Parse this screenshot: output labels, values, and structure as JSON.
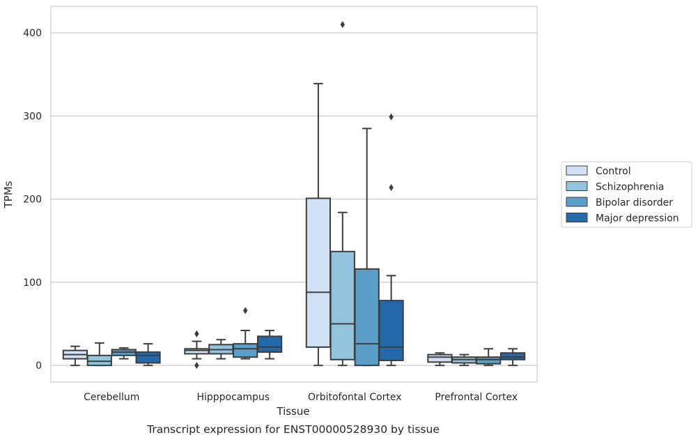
{
  "chart_data": {
    "type": "boxplot",
    "title": "Transcript expression for ENST00000528930 by tissue",
    "xlabel": "Tissue",
    "ylabel": "TPMs",
    "ylim": [
      -20,
      432
    ],
    "yticks": [
      0,
      100,
      200,
      300,
      400
    ],
    "grid": true,
    "legend_position": "right",
    "categories": [
      "Cerebellum",
      "Hipppocampus",
      "Orbitofontal Cortex",
      "Prefrontal Cortex"
    ],
    "series": [
      {
        "name": "Control",
        "color": "#cfe1f2",
        "boxes": [
          {
            "whislo": 0,
            "q1": 8,
            "med": 13,
            "q3": 18,
            "whishi": 23,
            "fliers": []
          },
          {
            "whislo": 8,
            "q1": 14,
            "med": 18,
            "q3": 20,
            "whishi": 29,
            "fliers": [
              38,
              0
            ]
          },
          {
            "whislo": 0,
            "q1": 22,
            "med": 88,
            "q3": 201,
            "whishi": 339,
            "fliers": []
          },
          {
            "whislo": 0,
            "q1": 4,
            "med": 10,
            "q3": 13,
            "whishi": 15,
            "fliers": []
          }
        ]
      },
      {
        "name": "Schizophrenia",
        "color": "#93c4de",
        "boxes": [
          {
            "whislo": 0,
            "q1": 0,
            "med": 5,
            "q3": 12,
            "whishi": 27,
            "fliers": []
          },
          {
            "whislo": 8,
            "q1": 14,
            "med": 19,
            "q3": 25,
            "whishi": 31,
            "fliers": []
          },
          {
            "whislo": 0,
            "q1": 7,
            "med": 50,
            "q3": 137,
            "whishi": 184,
            "fliers": [
              410
            ]
          },
          {
            "whislo": 0,
            "q1": 3,
            "med": 7,
            "q3": 10,
            "whishi": 13,
            "fliers": []
          }
        ]
      },
      {
        "name": "Bipolar disorder",
        "color": "#5a9fca",
        "boxes": [
          {
            "whislo": 8,
            "q1": 12,
            "med": 16,
            "q3": 19,
            "whishi": 21,
            "fliers": []
          },
          {
            "whislo": 8,
            "q1": 10,
            "med": 20,
            "q3": 26,
            "whishi": 42,
            "fliers": [
              66
            ]
          },
          {
            "whislo": 0,
            "q1": 0,
            "med": 26,
            "q3": 116,
            "whishi": 285,
            "fliers": []
          },
          {
            "whislo": 0,
            "q1": 2,
            "med": 7,
            "q3": 10,
            "whishi": 20,
            "fliers": []
          }
        ]
      },
      {
        "name": "Major depression",
        "color": "#2469a9",
        "boxes": [
          {
            "whislo": 0,
            "q1": 3,
            "med": 12,
            "q3": 16,
            "whishi": 26,
            "fliers": []
          },
          {
            "whislo": 8,
            "q1": 16,
            "med": 22,
            "q3": 35,
            "whishi": 42,
            "fliers": []
          },
          {
            "whislo": 0,
            "q1": 6,
            "med": 22,
            "q3": 78,
            "whishi": 108,
            "fliers": [
              299,
              214
            ]
          },
          {
            "whislo": 0,
            "q1": 7,
            "med": 10,
            "q3": 15,
            "whishi": 20,
            "fliers": []
          }
        ]
      }
    ]
  }
}
